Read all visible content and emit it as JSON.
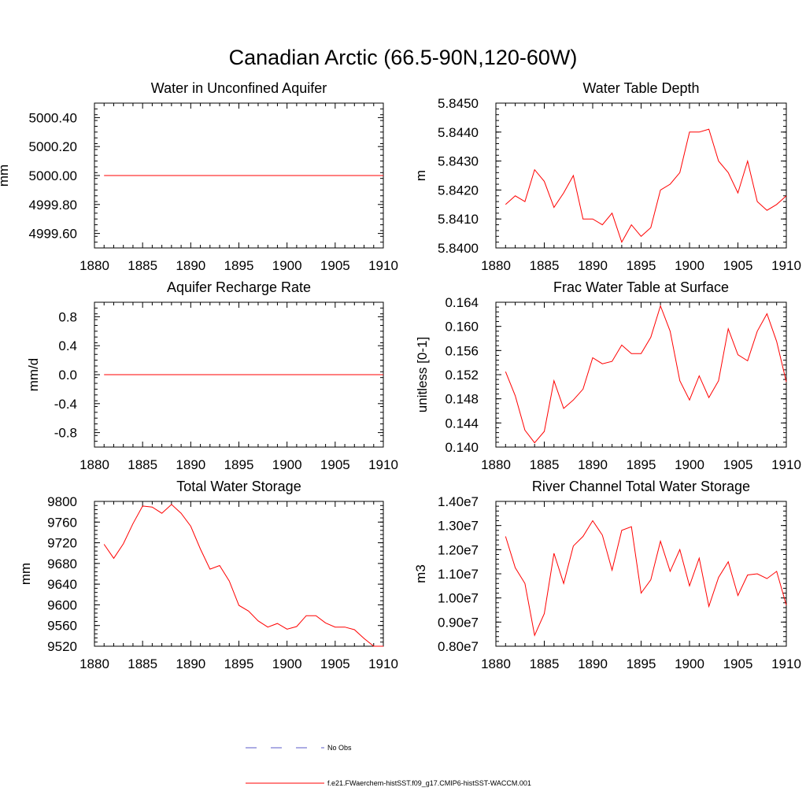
{
  "title": "Canadian Arctic (66.5-90N,120-60W)",
  "legend": {
    "entries": [
      {
        "label": "No Obs",
        "color": "#5a5ac8",
        "style": "dashed"
      },
      {
        "label": "f.e21.FWaerchem-histSST.f09_g17.CMIP6-histSST-WACCM.001",
        "color": "#ff0000",
        "style": "solid"
      }
    ]
  },
  "chart_data": [
    {
      "type": "line",
      "title": "Water in Unconfined Aquifer",
      "ylabel": "mm",
      "xlim": [
        1880,
        1910
      ],
      "ylim": [
        4999.5,
        5000.5
      ],
      "xticks": [
        "1880",
        "1885",
        "1890",
        "1895",
        "1900",
        "1905",
        "1910"
      ],
      "yticks": [
        {
          "value": 4999.6,
          "label": "4999.60"
        },
        {
          "value": 4999.8,
          "label": "4999.80"
        },
        {
          "value": 5000.0,
          "label": "5000.00"
        },
        {
          "value": 5000.2,
          "label": "5000.20"
        },
        {
          "value": 5000.4,
          "label": "5000.40"
        }
      ],
      "minor_step": 0.04,
      "series": [
        {
          "color": "#ff0000",
          "x": [
            1881,
            1910
          ],
          "y": [
            5000.0,
            5000.0
          ]
        }
      ]
    },
    {
      "type": "line",
      "title": "Water Table Depth",
      "ylabel": "m",
      "xlim": [
        1880,
        1910
      ],
      "ylim": [
        5.84,
        5.845
      ],
      "xticks": [
        "1880",
        "1885",
        "1890",
        "1895",
        "1900",
        "1905",
        "1910"
      ],
      "yticks": [
        {
          "value": 5.84,
          "label": "5.8400"
        },
        {
          "value": 5.841,
          "label": "5.8410"
        },
        {
          "value": 5.842,
          "label": "5.8420"
        },
        {
          "value": 5.843,
          "label": "5.8430"
        },
        {
          "value": 5.844,
          "label": "5.8440"
        },
        {
          "value": 5.845,
          "label": "5.8450"
        }
      ],
      "minor_step": 0.0002,
      "series": [
        {
          "color": "#ff0000",
          "x": [
            1881,
            1882,
            1883,
            1884,
            1885,
            1886,
            1887,
            1888,
            1889,
            1890,
            1891,
            1892,
            1893,
            1894,
            1895,
            1896,
            1897,
            1898,
            1899,
            1900,
            1901,
            1902,
            1903,
            1904,
            1905,
            1906,
            1907,
            1908,
            1909,
            1910
          ],
          "y": [
            5.8415,
            5.8418,
            5.8416,
            5.8427,
            5.8423,
            5.8414,
            5.8419,
            5.8425,
            5.841,
            5.841,
            5.8408,
            5.8412,
            5.8402,
            5.8408,
            5.8404,
            5.8407,
            5.842,
            5.8422,
            5.8426,
            5.844,
            5.844,
            5.8441,
            5.843,
            5.8426,
            5.8419,
            5.843,
            5.8416,
            5.8413,
            5.8415,
            5.8418
          ]
        }
      ]
    },
    {
      "type": "line",
      "title": "Aquifer Recharge Rate",
      "ylabel": "mm/d",
      "xlim": [
        1880,
        1910
      ],
      "ylim": [
        -1.0,
        1.0
      ],
      "xticks": [
        "1880",
        "1885",
        "1890",
        "1895",
        "1900",
        "1905",
        "1910"
      ],
      "yticks": [
        {
          "value": -0.8,
          "label": "-0.8"
        },
        {
          "value": -0.4,
          "label": "-0.4"
        },
        {
          "value": 0.0,
          "label": "0.0"
        },
        {
          "value": 0.4,
          "label": "0.4"
        },
        {
          "value": 0.8,
          "label": "0.8"
        }
      ],
      "minor_step": 0.08,
      "series": [
        {
          "color": "#ff0000",
          "x": [
            1881,
            1910
          ],
          "y": [
            0.0,
            0.0
          ]
        }
      ]
    },
    {
      "type": "line",
      "title": "Frac Water Table at Surface",
      "ylabel": "unitless [0-1]",
      "xlim": [
        1880,
        1910
      ],
      "ylim": [
        0.14,
        0.164
      ],
      "xticks": [
        "1880",
        "1885",
        "1890",
        "1895",
        "1900",
        "1905",
        "1910"
      ],
      "yticks": [
        {
          "value": 0.14,
          "label": "0.140"
        },
        {
          "value": 0.144,
          "label": "0.144"
        },
        {
          "value": 0.148,
          "label": "0.148"
        },
        {
          "value": 0.152,
          "label": "0.152"
        },
        {
          "value": 0.156,
          "label": "0.156"
        },
        {
          "value": 0.16,
          "label": "0.160"
        },
        {
          "value": 0.164,
          "label": "0.164"
        }
      ],
      "minor_step": 0.0008,
      "series": [
        {
          "color": "#ff0000",
          "x": [
            1881,
            1882,
            1883,
            1884,
            1885,
            1886,
            1887,
            1888,
            1889,
            1890,
            1891,
            1892,
            1893,
            1894,
            1895,
            1896,
            1897,
            1898,
            1899,
            1900,
            1901,
            1902,
            1903,
            1904,
            1905,
            1906,
            1907,
            1908,
            1909,
            1910
          ],
          "y": [
            0.1525,
            0.1485,
            0.1428,
            0.1407,
            0.1426,
            0.151,
            0.1464,
            0.1478,
            0.1496,
            0.1548,
            0.1538,
            0.1542,
            0.1569,
            0.1555,
            0.1555,
            0.1582,
            0.1634,
            0.1592,
            0.151,
            0.1478,
            0.1518,
            0.1482,
            0.151,
            0.1596,
            0.1553,
            0.1543,
            0.1592,
            0.1621,
            0.1575,
            0.1508
          ]
        }
      ]
    },
    {
      "type": "line",
      "title": "Total Water Storage",
      "ylabel": "mm",
      "xlim": [
        1880,
        1910
      ],
      "ylim": [
        9520,
        9800
      ],
      "xticks": [
        "1880",
        "1885",
        "1890",
        "1895",
        "1900",
        "1905",
        "1910"
      ],
      "yticks": [
        {
          "value": 9520,
          "label": "9520"
        },
        {
          "value": 9560,
          "label": "9560"
        },
        {
          "value": 9600,
          "label": "9600"
        },
        {
          "value": 9640,
          "label": "9640"
        },
        {
          "value": 9680,
          "label": "9680"
        },
        {
          "value": 9720,
          "label": "9720"
        },
        {
          "value": 9760,
          "label": "9760"
        },
        {
          "value": 9800,
          "label": "9800"
        }
      ],
      "minor_step": 8,
      "series": [
        {
          "color": "#ff0000",
          "x": [
            1881,
            1882,
            1883,
            1884,
            1885,
            1886,
            1887,
            1888,
            1889,
            1890,
            1891,
            1892,
            1893,
            1894,
            1895,
            1896,
            1897,
            1898,
            1899,
            1900,
            1901,
            1902,
            1903,
            1904,
            1905,
            1906,
            1907,
            1908,
            1909,
            1910
          ],
          "y": [
            9717,
            9690,
            9718,
            9757,
            9791,
            9789,
            9777,
            9794,
            9777,
            9752,
            9708,
            9669,
            9676,
            9646,
            9599,
            9588,
            9569,
            9557,
            9564,
            9553,
            9558,
            9579,
            9579,
            9565,
            9557,
            9557,
            9552,
            9535,
            9520,
            9520
          ]
        }
      ]
    },
    {
      "type": "line",
      "title": "River Channel Total Water Storage",
      "ylabel": "m3",
      "xlim": [
        1880,
        1910
      ],
      "ylim": [
        8000000,
        14000000
      ],
      "xticks": [
        "1880",
        "1885",
        "1890",
        "1895",
        "1900",
        "1905",
        "1910"
      ],
      "yticks": [
        {
          "value": 8000000,
          "label": "0.80e7"
        },
        {
          "value": 9000000,
          "label": "0.90e7"
        },
        {
          "value": 10000000,
          "label": "1.00e7"
        },
        {
          "value": 11000000,
          "label": "1.10e7"
        },
        {
          "value": 12000000,
          "label": "1.20e7"
        },
        {
          "value": 13000000,
          "label": "1.30e7"
        },
        {
          "value": 14000000,
          "label": "1.40e7"
        }
      ],
      "minor_step": 200000,
      "series": [
        {
          "color": "#ff0000",
          "x": [
            1881,
            1882,
            1883,
            1884,
            1885,
            1886,
            1887,
            1888,
            1889,
            1890,
            1891,
            1892,
            1893,
            1894,
            1895,
            1896,
            1897,
            1898,
            1899,
            1900,
            1901,
            1902,
            1903,
            1904,
            1905,
            1906,
            1907,
            1908,
            1909,
            1910
          ],
          "y": [
            12550000,
            11250000,
            10600000,
            8450000,
            9350000,
            11850000,
            10600000,
            12150000,
            12550000,
            13200000,
            12600000,
            11150000,
            12800000,
            12950000,
            10200000,
            10750000,
            12350000,
            11100000,
            12000000,
            10500000,
            11650000,
            9650000,
            10850000,
            11500000,
            10100000,
            10950000,
            11000000,
            10800000,
            11100000,
            9700000
          ]
        }
      ]
    }
  ]
}
